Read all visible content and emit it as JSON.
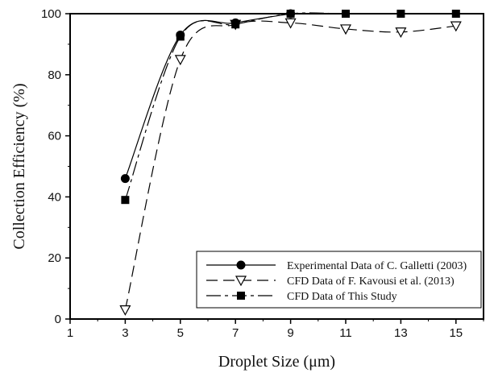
{
  "chart_data": {
    "type": "line",
    "xlabel": "Droplet Size (μm)",
    "ylabel": "Collection Efficiency (%)",
    "xlim": [
      1,
      16
    ],
    "ylim": [
      0,
      100
    ],
    "xticks": [
      1,
      3,
      5,
      7,
      9,
      11,
      13,
      15
    ],
    "yticks": [
      0,
      20,
      40,
      60,
      80,
      100
    ],
    "grid": false,
    "legend_position": "bottom-right",
    "series": [
      {
        "name": "Experimental Data of C. Galletti (2003)",
        "marker": "circle-filled",
        "line": "solid",
        "x": [
          3,
          5,
          7,
          9
        ],
        "y": [
          46,
          93,
          97,
          100
        ]
      },
      {
        "name": "CFD Data of F. Kavousi et al. (2013)",
        "marker": "triangle-down-open",
        "line": "long-dash",
        "x": [
          3,
          5,
          7,
          9,
          11,
          13,
          15
        ],
        "y": [
          3,
          85,
          96.5,
          97,
          95,
          94,
          96
        ]
      },
      {
        "name": "CFD Data of This Study",
        "marker": "square-filled",
        "line": "long-short-dash",
        "x": [
          3,
          5,
          7,
          9,
          11,
          13,
          15
        ],
        "y": [
          39,
          92.5,
          96.5,
          100,
          100,
          100,
          100
        ]
      }
    ]
  }
}
